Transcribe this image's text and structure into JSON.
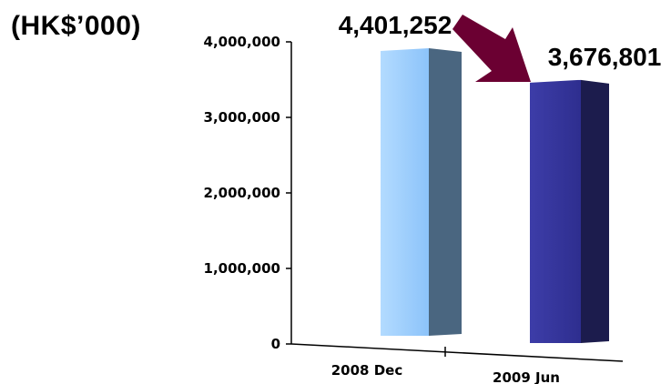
{
  "unit_label": "(HK$’000)",
  "colors": {
    "bar1_front": "#99ccff",
    "bar1_side": "#4a6680",
    "bar2_front": "#333399",
    "bar2_side": "#1c1c4d",
    "arrow": "#6b0032",
    "axis": "#000000"
  },
  "chart_data": {
    "type": "bar",
    "title": "",
    "xlabel": "",
    "ylabel": "(HK$’000)",
    "categories": [
      "2008 Dec",
      "2009 Jun"
    ],
    "values": [
      4401252,
      3676801
    ],
    "value_labels": [
      "4,401,252",
      "3,676,801"
    ],
    "ylim": [
      0,
      4000000
    ],
    "yticks": [
      0,
      1000000,
      2000000,
      3000000,
      4000000
    ],
    "ytick_labels": [
      "0",
      "1,000,000",
      "2,000,000",
      "3,000,000",
      "4,000,000"
    ],
    "annotations": [
      "arrow from 2008 Dec value to 2009 Jun value"
    ],
    "grid": false,
    "legend": "none"
  }
}
